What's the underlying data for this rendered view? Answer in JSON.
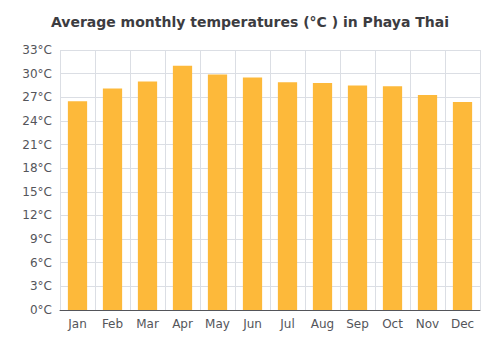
{
  "chart_data": {
    "type": "bar",
    "title": "Average monthly temperatures (°C ) in Phaya Thai",
    "categories": [
      "Jan",
      "Feb",
      "Mar",
      "Apr",
      "May",
      "Jun",
      "Jul",
      "Aug",
      "Sep",
      "Oct",
      "Nov",
      "Dec"
    ],
    "values": [
      26.5,
      28.1,
      29.0,
      31.0,
      29.9,
      29.5,
      28.9,
      28.8,
      28.5,
      28.4,
      27.3,
      26.4
    ],
    "color": "#FDB93A",
    "ylim": [
      0,
      33
    ],
    "yticks": [
      {
        "value": 0,
        "label": "0°C"
      },
      {
        "value": 3,
        "label": "3°C"
      },
      {
        "value": 6,
        "label": "6°C"
      },
      {
        "value": 9,
        "label": "9°C"
      },
      {
        "value": 12,
        "label": "12°C"
      },
      {
        "value": 15,
        "label": "15°C"
      },
      {
        "value": 18,
        "label": "18°C"
      },
      {
        "value": 21,
        "label": "21°C"
      },
      {
        "value": 24,
        "label": "24°C"
      },
      {
        "value": 27,
        "label": "27°C"
      },
      {
        "value": 30,
        "label": "30°C"
      },
      {
        "value": 33,
        "label": "33°C"
      }
    ],
    "grid": true
  }
}
